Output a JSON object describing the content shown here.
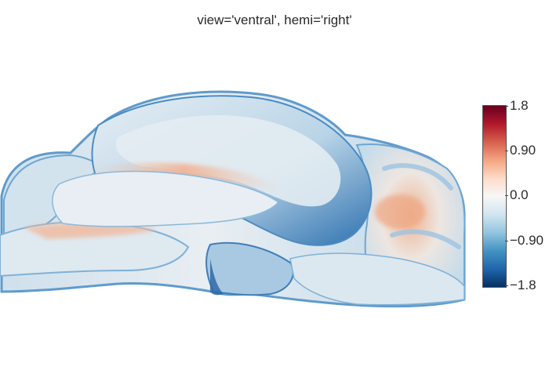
{
  "figure": {
    "title": "view='ventral', hemi='right'"
  },
  "colorbar": {
    "colorscale": [
      "#67001f",
      "#b2182b",
      "#d6604d",
      "#f4a582",
      "#fddbc7",
      "#f7f7f7",
      "#d1e5f0",
      "#92c5de",
      "#4393c3",
      "#2166ac",
      "#053061"
    ],
    "ticks": [
      "1.8",
      "0.90",
      "0.0",
      "−0.90",
      "−1.8"
    ]
  },
  "surface_colors": {
    "outline": "#4a8bc4",
    "base": "#c9dcea",
    "light": "#eef1f4",
    "shade": "#b3cfe3",
    "deep": "#2e6fae",
    "warm": "#f0b79b"
  }
}
